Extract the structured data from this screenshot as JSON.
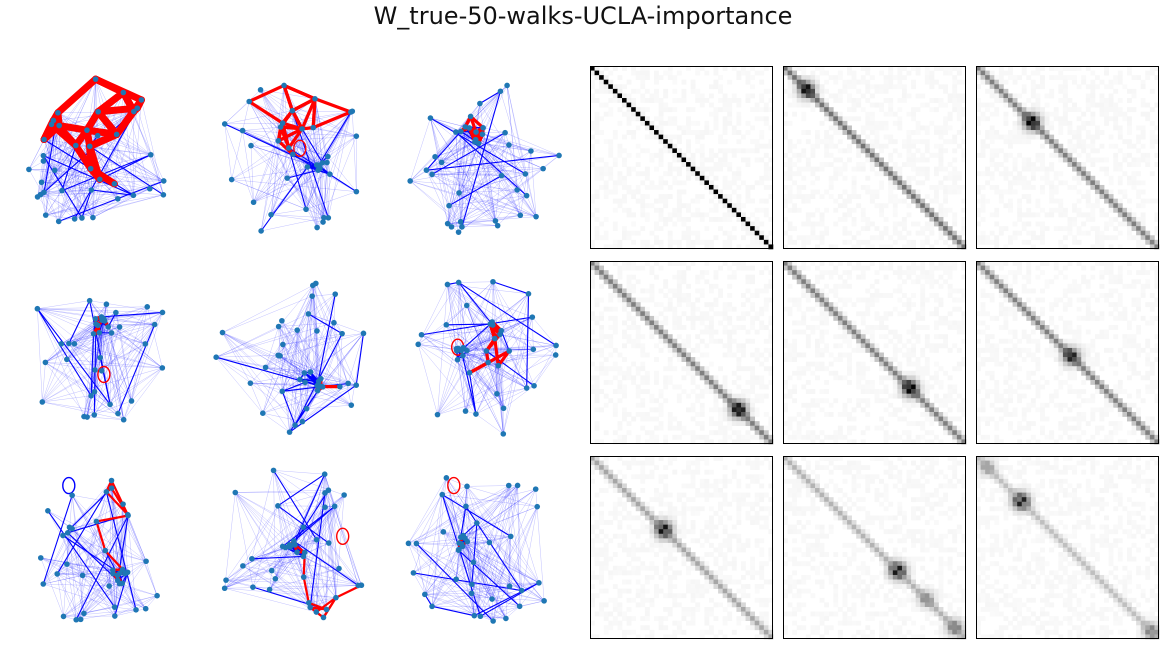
{
  "figure": {
    "title": "W_true-50-walks-UCLA-importance"
  },
  "graphs": [
    {
      "panel": 1,
      "seed": 11,
      "nodes": 40,
      "red_walk_style": "very-thick",
      "blue_cluster": null
    },
    {
      "panel": 2,
      "seed": 23,
      "nodes": 40,
      "red_walk_style": "thick",
      "blue_cluster": "right",
      "self_loop": "upper-center"
    },
    {
      "panel": 3,
      "seed": 37,
      "nodes": 40,
      "red_walk_style": "thick",
      "blue_cluster": "upper-left"
    },
    {
      "panel": 4,
      "seed": 41,
      "nodes": 40,
      "red_walk_style": "thick",
      "blue_cluster": "upper-center",
      "self_loop": "center"
    },
    {
      "panel": 5,
      "seed": 53,
      "nodes": 40,
      "red_walk_style": "thick",
      "blue_cluster": "lower-right"
    },
    {
      "panel": 6,
      "seed": 67,
      "nodes": 40,
      "red_walk_style": "thick",
      "blue_cluster": "left",
      "self_loop": "left"
    },
    {
      "panel": 7,
      "seed": 71,
      "nodes": 40,
      "red_walk_style": "medium",
      "blue_cluster": "lower-right",
      "self_loop": "top-left"
    },
    {
      "panel": 8,
      "seed": 83,
      "nodes": 40,
      "red_walk_style": "medium",
      "blue_cluster": "center",
      "self_loop": "right"
    },
    {
      "panel": 9,
      "seed": 97,
      "nodes": 40,
      "red_walk_style": "thin",
      "blue_cluster": "left",
      "self_loop": "top-left"
    }
  ],
  "matrices": [
    {
      "panel": 1,
      "size": 40,
      "diagonal_intensity": 1.0,
      "hotspots": []
    },
    {
      "panel": 2,
      "size": 40,
      "diagonal_intensity": 0.55,
      "hotspots": [
        {
          "pos": 0.12,
          "strength": 0.9
        }
      ]
    },
    {
      "panel": 3,
      "size": 40,
      "diagonal_intensity": 0.5,
      "hotspots": [
        {
          "pos": 0.3,
          "strength": 1.0
        }
      ]
    },
    {
      "panel": 4,
      "size": 40,
      "diagonal_intensity": 0.5,
      "hotspots": [
        {
          "pos": 0.82,
          "strength": 1.0
        }
      ]
    },
    {
      "panel": 5,
      "size": 40,
      "diagonal_intensity": 0.5,
      "hotspots": [
        {
          "pos": 0.7,
          "strength": 1.0
        }
      ]
    },
    {
      "panel": 6,
      "size": 40,
      "diagonal_intensity": 0.5,
      "hotspots": [
        {
          "pos": 0.52,
          "strength": 0.85
        }
      ]
    },
    {
      "panel": 7,
      "size": 40,
      "diagonal_intensity": 0.35,
      "hotspots": [
        {
          "pos": 0.4,
          "strength": 1.0
        }
      ]
    },
    {
      "panel": 8,
      "size": 40,
      "diagonal_intensity": 0.3,
      "hotspots": [
        {
          "pos": 0.63,
          "strength": 1.0
        },
        {
          "pos": 0.79,
          "strength": 0.4
        },
        {
          "pos": 0.95,
          "strength": 0.5
        }
      ]
    },
    {
      "panel": 9,
      "size": 40,
      "diagonal_intensity": 0.25,
      "hotspots": [
        {
          "pos": 0.24,
          "strength": 1.0
        },
        {
          "pos": 0.05,
          "strength": 0.35
        },
        {
          "pos": 0.97,
          "strength": 0.5
        }
      ]
    }
  ],
  "colors": {
    "node": "#1f77b4",
    "walk_edge": "#ff0000",
    "graph_edge": "#0000ff",
    "frame": "#000000"
  }
}
